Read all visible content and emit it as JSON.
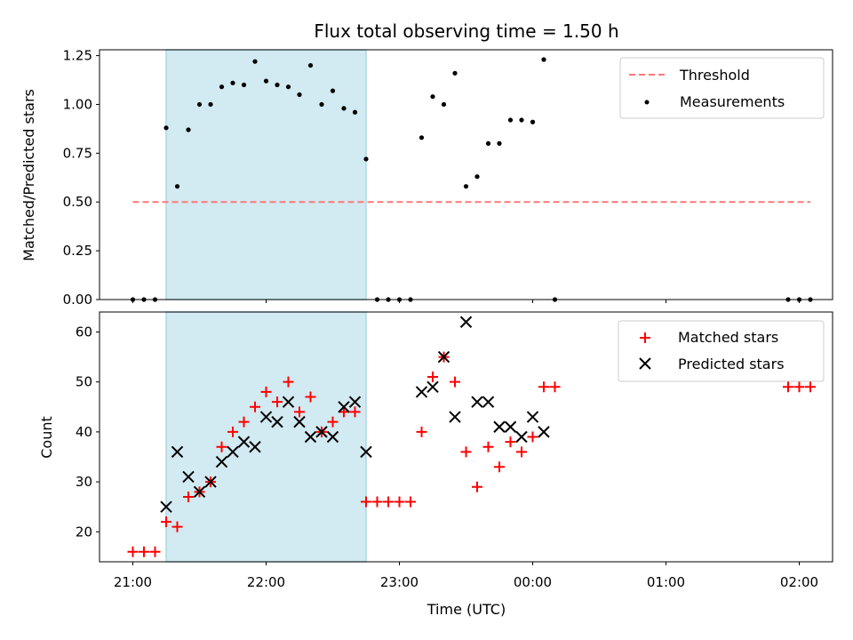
{
  "chart_data": [
    {
      "type": "scatter",
      "title": "Flux total observing time = 1.50 h",
      "xlabel": "",
      "ylabel": "Matched/Predicted stars",
      "ylim": [
        0,
        1.28
      ],
      "yticks": [
        0.0,
        0.25,
        0.5,
        0.75,
        1.0,
        1.25
      ],
      "ytick_labels": [
        "0.00",
        "0.25",
        "0.50",
        "0.75",
        "1.00",
        "1.25"
      ],
      "x_units": "minutes after 21:00 UTC",
      "xlim": [
        -15,
        315
      ],
      "shaded_interval": [
        15,
        105
      ],
      "shade_color": "#add8e6",
      "threshold": {
        "name": "Threshold",
        "value": 0.5,
        "x_range": [
          0,
          305
        ],
        "color": "#ff7777",
        "style": "dashed"
      },
      "series": [
        {
          "name": "Measurements",
          "color": "#000000",
          "marker": "dot",
          "x": [
            0,
            5,
            10,
            15,
            20,
            25,
            30,
            35,
            40,
            45,
            50,
            55,
            60,
            65,
            70,
            75,
            80,
            85,
            90,
            95,
            100,
            105,
            110,
            115,
            120,
            125,
            130,
            135,
            140,
            145,
            150,
            155,
            160,
            165,
            170,
            175,
            180,
            185,
            190,
            295,
            300,
            305
          ],
          "y": [
            0,
            0,
            0,
            0.88,
            0.58,
            0.87,
            1.0,
            1.0,
            1.09,
            1.11,
            1.1,
            1.22,
            1.12,
            1.1,
            1.09,
            1.05,
            1.2,
            1.0,
            1.07,
            0.98,
            0.96,
            0.72,
            0,
            0,
            0,
            0,
            0.83,
            1.04,
            1.0,
            1.16,
            0.58,
            0.63,
            0.8,
            0.8,
            0.92,
            0.92,
            0.91,
            1.23,
            0,
            0,
            0,
            0
          ]
        }
      ],
      "legend": {
        "placement": "upper-right",
        "entries": [
          "Threshold",
          "Measurements"
        ]
      },
      "grid": false
    },
    {
      "type": "scatter",
      "title": "",
      "xlabel": "Time (UTC)",
      "ylabel": "Count",
      "ylim": [
        14,
        64
      ],
      "yticks": [
        20,
        30,
        40,
        50,
        60
      ],
      "ytick_labels": [
        "20",
        "30",
        "40",
        "50",
        "60"
      ],
      "x_units": "minutes after 21:00 UTC",
      "xlim": [
        -15,
        315
      ],
      "xticks": [
        0,
        60,
        120,
        180,
        240,
        300
      ],
      "xtick_labels": [
        "21:00",
        "22:00",
        "23:00",
        "00:00",
        "01:00",
        "02:00"
      ],
      "shaded_interval": [
        15,
        105
      ],
      "shade_color": "#add8e6",
      "series": [
        {
          "name": "Matched stars",
          "color": "#ff0000",
          "marker": "plus",
          "x": [
            0,
            5,
            10,
            15,
            20,
            25,
            30,
            35,
            40,
            45,
            50,
            55,
            60,
            65,
            70,
            75,
            80,
            85,
            90,
            95,
            100,
            105,
            110,
            115,
            120,
            125,
            130,
            135,
            140,
            145,
            150,
            155,
            160,
            165,
            170,
            175,
            180,
            185,
            190,
            295,
            300,
            305
          ],
          "y": [
            16,
            16,
            16,
            22,
            21,
            27,
            28,
            30,
            37,
            40,
            42,
            45,
            48,
            46,
            50,
            44,
            47,
            40,
            42,
            44,
            44,
            26,
            26,
            26,
            26,
            26,
            40,
            51,
            55,
            50,
            36,
            29,
            37,
            33,
            38,
            36,
            39,
            49,
            49,
            49,
            49,
            49
          ]
        },
        {
          "name": "Predicted stars",
          "color": "#000000",
          "marker": "x",
          "x": [
            15,
            20,
            25,
            30,
            35,
            40,
            45,
            50,
            55,
            60,
            65,
            70,
            75,
            80,
            85,
            90,
            95,
            100,
            105,
            130,
            135,
            140,
            145,
            150,
            155,
            160,
            165,
            170,
            175,
            180,
            185
          ],
          "y": [
            25,
            36,
            31,
            28,
            30,
            34,
            36,
            38,
            37,
            43,
            42,
            46,
            42,
            39,
            40,
            39,
            45,
            46,
            36,
            48,
            49,
            55,
            43,
            62,
            46,
            46,
            41,
            41,
            39,
            43,
            40
          ]
        }
      ],
      "legend": {
        "placement": "upper-right",
        "entries": [
          "Matched stars",
          "Predicted stars"
        ]
      },
      "grid": false
    }
  ]
}
